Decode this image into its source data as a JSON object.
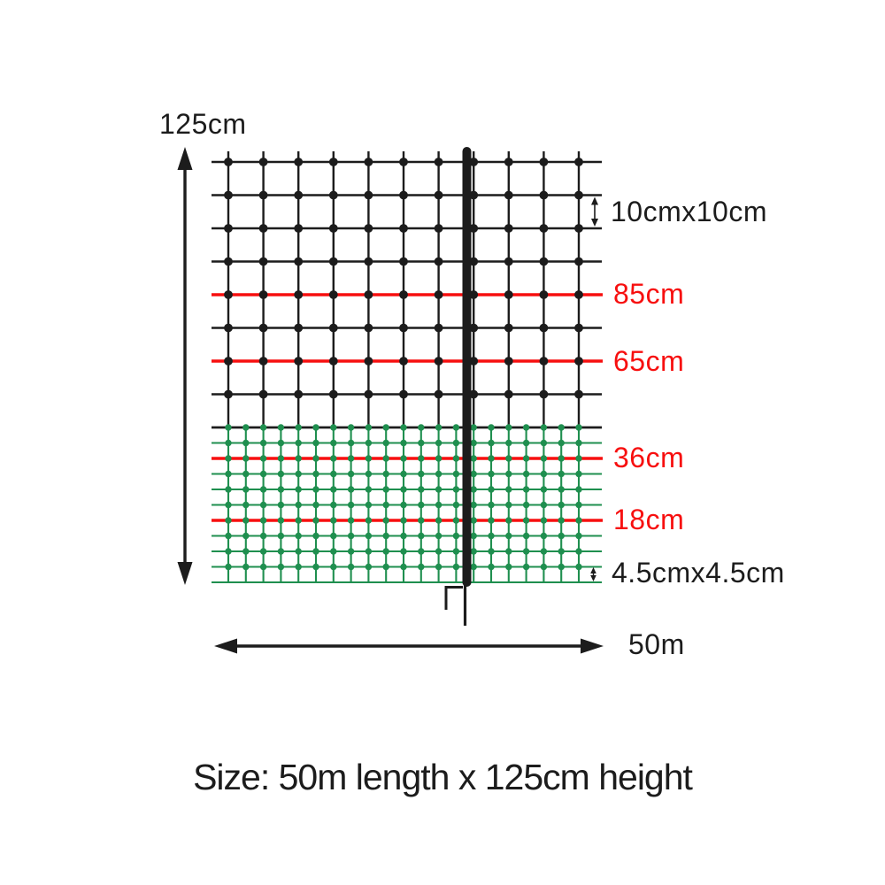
{
  "labels": {
    "total_height": "125cm",
    "upper_cell": "10cmx10cm",
    "strands": [
      "85cm",
      "65cm",
      "36cm",
      "18cm"
    ],
    "lower_cell": "4.5cmx4.5cm",
    "length": "50m",
    "caption": "Size: 50m length x 125cm height"
  },
  "diagram": {
    "type": "fence-netting-dimensions",
    "total_height_cm": 125,
    "length_m": 50,
    "upper_mesh_cell_cm": "10x10",
    "lower_mesh_cell_cm": "4.5x4.5",
    "strand_heights_cm": [
      85,
      65,
      36,
      18
    ]
  },
  "colors": {
    "ink": "#1c1c1c",
    "red": "#f70f0f",
    "green": "#1f8f4f"
  }
}
